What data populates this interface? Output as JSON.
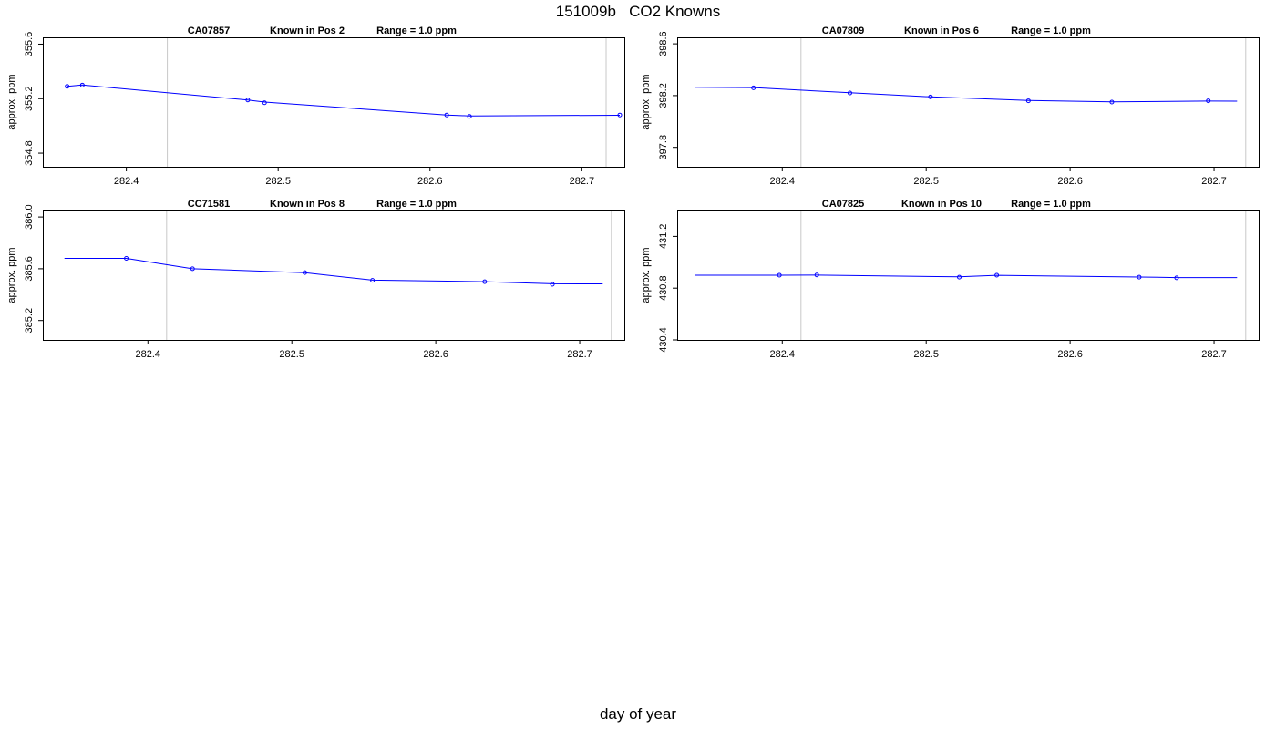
{
  "figure": {
    "title": "151009b   CO2 Knowns",
    "xlabel": "day of year"
  },
  "chart_data": [
    {
      "type": "line",
      "title": {
        "id": "CA07857",
        "position": "Known in Pos 2",
        "range": "Range = 1.0 ppm"
      },
      "xlabel": "day of year",
      "ylabel": "approx. ppm",
      "xlim": [
        282.345,
        282.728
      ],
      "ylim": [
        354.7,
        355.65
      ],
      "xticks": [
        "282.4",
        "282.5",
        "282.6",
        "282.7"
      ],
      "yticks": [
        "354.8",
        "355.2",
        "355.6"
      ],
      "vlines": [
        282.427,
        282.716
      ],
      "line_color": "#0000ff",
      "points": [
        {
          "x": 282.361,
          "y": 355.29
        },
        {
          "x": 282.371,
          "y": 355.3
        },
        {
          "x": 282.48,
          "y": 355.19
        },
        {
          "x": 282.491,
          "y": 355.17
        },
        {
          "x": 282.611,
          "y": 355.08
        },
        {
          "x": 282.626,
          "y": 355.07
        },
        {
          "x": 282.725,
          "y": 355.08
        }
      ],
      "fit": [
        {
          "x": 282.361,
          "y": 355.29
        },
        {
          "x": 282.371,
          "y": 355.3
        },
        {
          "x": 282.48,
          "y": 355.19
        },
        {
          "x": 282.491,
          "y": 355.175
        },
        {
          "x": 282.611,
          "y": 355.08
        },
        {
          "x": 282.626,
          "y": 355.073
        },
        {
          "x": 282.725,
          "y": 355.078
        }
      ]
    },
    {
      "type": "line",
      "title": {
        "id": "CA07809",
        "position": "Known in Pos 6",
        "range": "Range = 1.0 ppm"
      },
      "xlabel": "day of year",
      "ylabel": "approx. ppm",
      "xlim": [
        282.327,
        282.731
      ],
      "ylim": [
        397.65,
        398.65
      ],
      "xticks": [
        "282.4",
        "282.5",
        "282.6",
        "282.7"
      ],
      "yticks": [
        "397.8",
        "398.2",
        "398.6"
      ],
      "vlines": [
        282.413,
        282.722
      ],
      "line_color": "#0000ff",
      "points": [
        {
          "x": 282.38,
          "y": 398.26
        },
        {
          "x": 282.447,
          "y": 398.22
        },
        {
          "x": 282.503,
          "y": 398.19
        },
        {
          "x": 282.571,
          "y": 398.16
        },
        {
          "x": 282.629,
          "y": 398.15
        },
        {
          "x": 282.696,
          "y": 398.16
        }
      ],
      "fit": [
        {
          "x": 282.339,
          "y": 398.265
        },
        {
          "x": 282.38,
          "y": 398.262
        },
        {
          "x": 282.447,
          "y": 398.222
        },
        {
          "x": 282.503,
          "y": 398.19
        },
        {
          "x": 282.571,
          "y": 398.162
        },
        {
          "x": 282.629,
          "y": 398.152
        },
        {
          "x": 282.696,
          "y": 398.158
        },
        {
          "x": 282.716,
          "y": 398.157
        }
      ]
    },
    {
      "type": "line",
      "title": {
        "id": "CC71581",
        "position": "Known in Pos 8",
        "range": "Range = 1.0 ppm"
      },
      "xlabel": "day of year",
      "ylabel": "approx. ppm",
      "xlim": [
        282.327,
        282.731
      ],
      "ylim": [
        385.05,
        386.05
      ],
      "xticks": [
        "282.4",
        "282.5",
        "282.6",
        "282.7"
      ],
      "yticks": [
        "385.2",
        "385.6",
        "386.0"
      ],
      "vlines": [
        282.413,
        282.722
      ],
      "line_color": "#0000ff",
      "points": [
        {
          "x": 282.385,
          "y": 385.68
        },
        {
          "x": 282.431,
          "y": 385.6
        },
        {
          "x": 282.509,
          "y": 385.57
        },
        {
          "x": 282.556,
          "y": 385.51
        },
        {
          "x": 282.634,
          "y": 385.5
        },
        {
          "x": 282.681,
          "y": 385.48
        }
      ],
      "fit": [
        {
          "x": 282.342,
          "y": 385.68
        },
        {
          "x": 282.385,
          "y": 385.68
        },
        {
          "x": 282.431,
          "y": 385.6
        },
        {
          "x": 282.509,
          "y": 385.57
        },
        {
          "x": 282.556,
          "y": 385.512
        },
        {
          "x": 282.634,
          "y": 385.5
        },
        {
          "x": 282.681,
          "y": 385.484
        },
        {
          "x": 282.716,
          "y": 385.483
        }
      ]
    },
    {
      "type": "line",
      "title": {
        "id": "CA07825",
        "position": "Known in Pos 10",
        "range": "Range = 1.0 ppm"
      },
      "xlabel": "day of year",
      "ylabel": "approx. ppm",
      "xlim": [
        282.327,
        282.731
      ],
      "ylim": [
        430.4,
        431.4
      ],
      "xticks": [
        "282.4",
        "282.5",
        "282.6",
        "282.7"
      ],
      "yticks": [
        "430.4",
        "430.8",
        "431.2"
      ],
      "vlines": [
        282.413,
        282.722
      ],
      "line_color": "#0000ff",
      "points": [
        {
          "x": 282.398,
          "y": 430.9
        },
        {
          "x": 282.424,
          "y": 430.902
        },
        {
          "x": 282.523,
          "y": 430.885
        },
        {
          "x": 282.549,
          "y": 430.9
        },
        {
          "x": 282.648,
          "y": 430.885
        },
        {
          "x": 282.674,
          "y": 430.88
        }
      ],
      "fit": [
        {
          "x": 282.339,
          "y": 430.9
        },
        {
          "x": 282.398,
          "y": 430.9
        },
        {
          "x": 282.424,
          "y": 430.901
        },
        {
          "x": 282.523,
          "y": 430.887
        },
        {
          "x": 282.549,
          "y": 430.899
        },
        {
          "x": 282.648,
          "y": 430.886
        },
        {
          "x": 282.674,
          "y": 430.882
        },
        {
          "x": 282.716,
          "y": 430.882
        }
      ]
    }
  ]
}
